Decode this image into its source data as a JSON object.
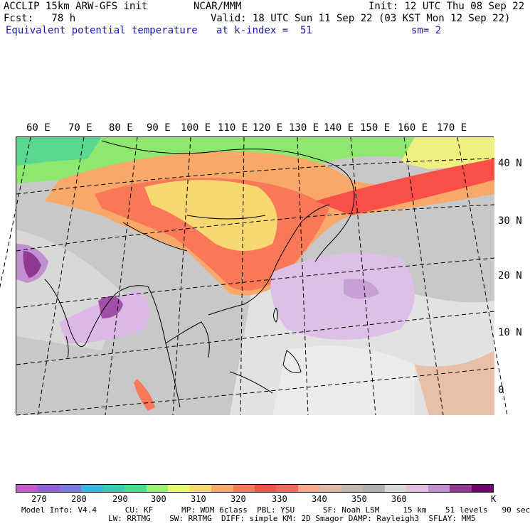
{
  "header": {
    "line1_left": "ACCLIP 15km ARW-GFS init",
    "line1_center": "NCAR/MMM",
    "line1_right": "Init: 12 UTC Thu 08 Sep 22",
    "line2_left": "Fcst:   78 h",
    "line2_right": "Valid: 18 UTC Sun 11 Sep 22 (03 KST Mon 12 Sep 22)",
    "line3_left": "Equivalent potential temperature",
    "line3_center": "at k-index =  51",
    "line3_right": "sm= 2"
  },
  "map": {
    "lon_labels": [
      "60 E",
      "70 E",
      "80 E",
      "90 E",
      "100 E",
      "110 E",
      "120 E",
      "130 E",
      "140 E",
      "150 E",
      "160 E",
      "170 E"
    ],
    "lat_labels": [
      "40 N",
      "30 N",
      "20 N",
      "10 N",
      "0"
    ]
  },
  "colorbar": {
    "colors": [
      "#c858d0",
      "#9060d8",
      "#7878e0",
      "#3ab4e0",
      "#30d0b0",
      "#40e090",
      "#98f070",
      "#e8f870",
      "#f8d870",
      "#f8a868",
      "#f87858",
      "#f85048",
      "#f06858",
      "#f8a888",
      "#e0b8a8",
      "#c0b8b0",
      "#b0b0b0",
      "#d8d8d8",
      "#e0c0e0",
      "#c090d0",
      "#903890",
      "#700070"
    ],
    "labels": [
      "270",
      "280",
      "290",
      "300",
      "310",
      "320",
      "330",
      "340",
      "350",
      "360",
      "K"
    ]
  },
  "footer": {
    "line1": "Model Info: V4.4      CU: KF      MP: WDM 6class  PBL: YSU      SF: Noah LSM     15 km    51 levels   90 sec",
    "line2": "LW: RRTMG    SW: RRTMG  DIFF: simple KM: 2D Smagor DAMP: Rayleigh3  SFLAY: MM5"
  }
}
